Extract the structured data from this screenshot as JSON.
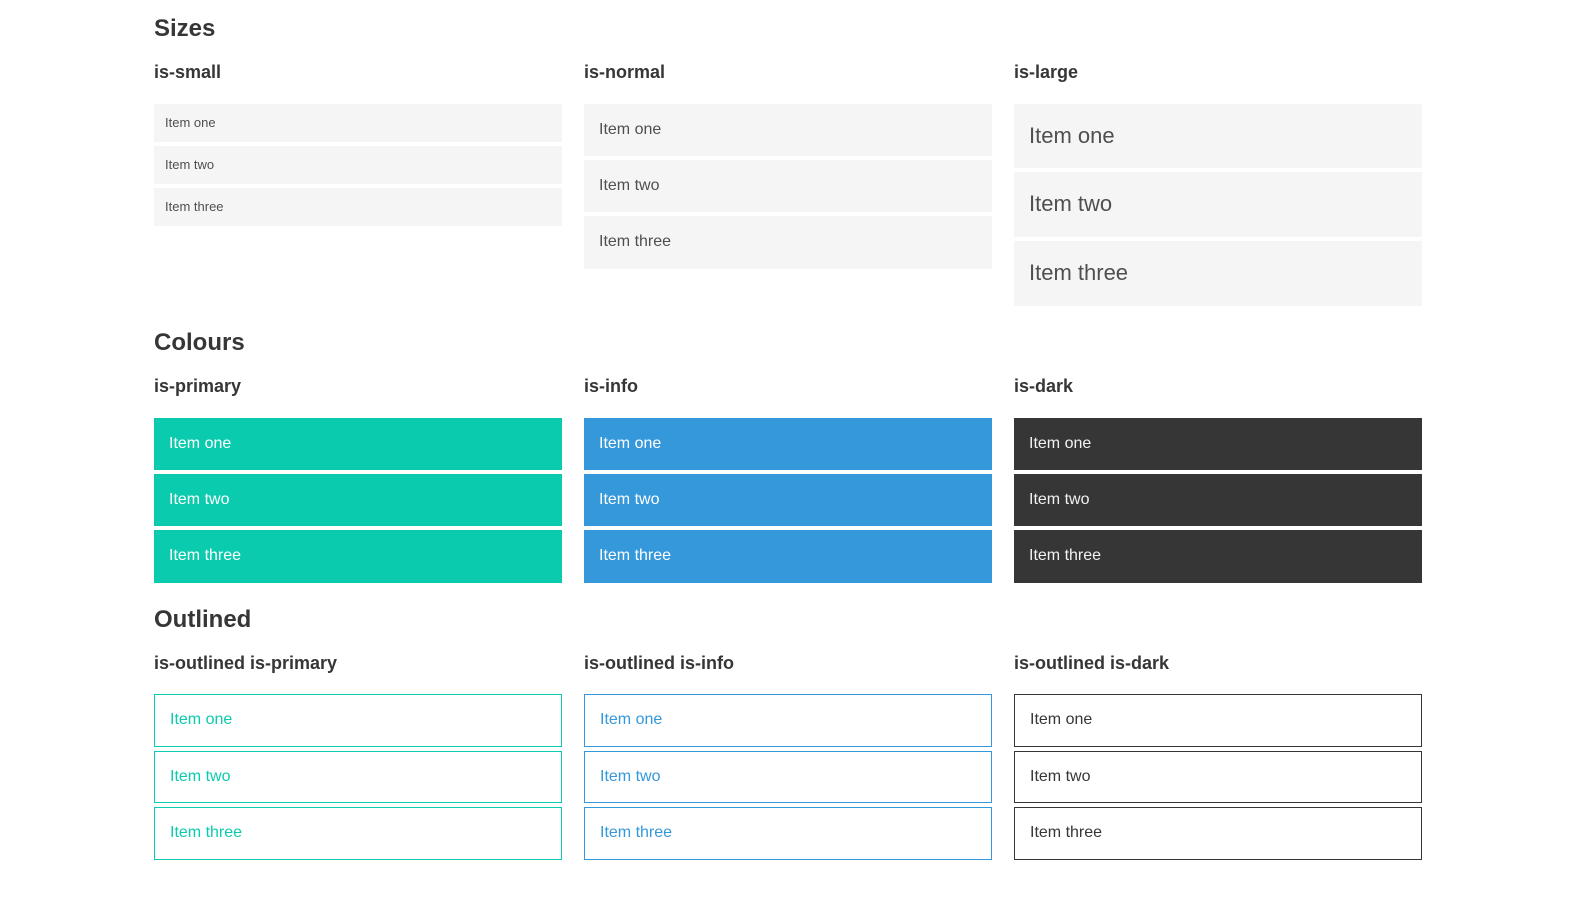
{
  "colors": {
    "primary": "#0bcbaf",
    "info": "#3498db",
    "dark": "#363636",
    "item-bg": "#f5f5f5",
    "item-text": "#4f4f4f",
    "heading": "#363636"
  },
  "sections": [
    {
      "title": "Sizes",
      "groups": [
        {
          "label": "is-small",
          "items": [
            "Item one",
            "Item two",
            "Item three"
          ]
        },
        {
          "label": "is-normal",
          "items": [
            "Item one",
            "Item two",
            "Item three"
          ]
        },
        {
          "label": "is-large",
          "items": [
            "Item one",
            "Item two",
            "Item three"
          ]
        }
      ]
    },
    {
      "title": "Colours",
      "groups": [
        {
          "label": "is-primary",
          "items": [
            "Item one",
            "Item two",
            "Item three"
          ]
        },
        {
          "label": "is-info",
          "items": [
            "Item one",
            "Item two",
            "Item three"
          ]
        },
        {
          "label": "is-dark",
          "items": [
            "Item one",
            "Item two",
            "Item three"
          ]
        }
      ]
    },
    {
      "title": "Outlined",
      "groups": [
        {
          "label": "is-outlined is-primary",
          "items": [
            "Item one",
            "Item two",
            "Item three"
          ]
        },
        {
          "label": "is-outlined is-info",
          "items": [
            "Item one",
            "Item two",
            "Item three"
          ]
        },
        {
          "label": "is-outlined is-dark",
          "items": [
            "Item one",
            "Item two",
            "Item three"
          ]
        }
      ]
    }
  ]
}
